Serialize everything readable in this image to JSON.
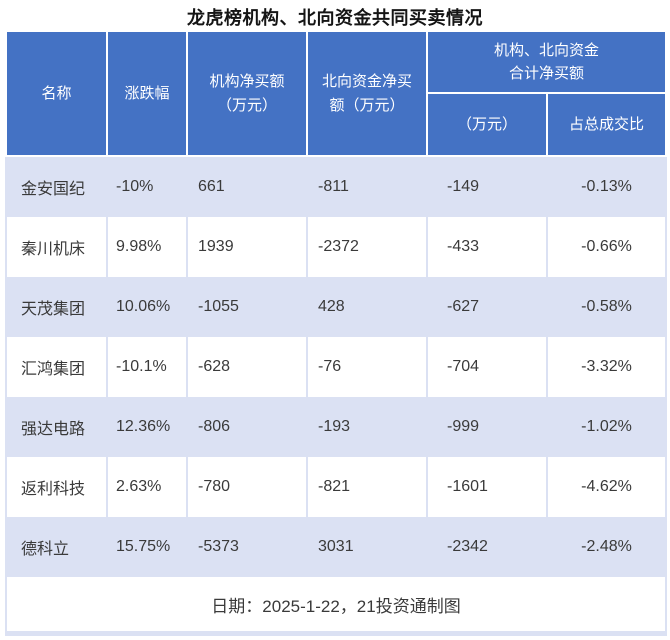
{
  "title": "龙虎榜机构、北向资金共同买卖情况",
  "colors": {
    "header_bg": "#4472c4",
    "header_text": "#ffffff",
    "row_alt_bg": "#dbe1f3",
    "row_bg": "#ffffff",
    "frame_border": "#dbe1f3",
    "body_text": "#3a3a3a",
    "title_text": "#151515"
  },
  "table": {
    "headers": {
      "name": "名称",
      "change": "涨跌幅",
      "inst_net_buy": "机构净买额\n（万元）",
      "north_net_buy": "北向资金净买\n额（万元）",
      "combined_group": "机构、北向资金\n合计净买额",
      "combined_amount": "（万元）",
      "combined_ratio": "占总成交比"
    },
    "rows": [
      {
        "name": "金安国纪",
        "change": "-10%",
        "inst": "661",
        "north": "-811",
        "combined": "-149",
        "ratio": "-0.13%"
      },
      {
        "name": "秦川机床",
        "change": "9.98%",
        "inst": "1939",
        "north": "-2372",
        "combined": "-433",
        "ratio": "-0.66%"
      },
      {
        "name": "天茂集团",
        "change": "10.06%",
        "inst": "-1055",
        "north": "428",
        "combined": "-627",
        "ratio": "-0.58%"
      },
      {
        "name": "汇鸿集团",
        "change": "-10.1%",
        "inst": "-628",
        "north": "-76",
        "combined": "-704",
        "ratio": "-3.32%"
      },
      {
        "name": "强达电路",
        "change": "12.36%",
        "inst": "-806",
        "north": "-193",
        "combined": "-999",
        "ratio": "-1.02%"
      },
      {
        "name": "返利科技",
        "change": "2.63%",
        "inst": "-780",
        "north": "-821",
        "combined": "-1601",
        "ratio": "-4.62%"
      },
      {
        "name": "德科立",
        "change": "15.75%",
        "inst": "-5373",
        "north": "3031",
        "combined": "-2342",
        "ratio": "-2.48%"
      }
    ]
  },
  "footer": {
    "note": "日期：2025-1-22，21投资通制图"
  },
  "chart_data": {
    "type": "table",
    "title": "龙虎榜机构、北向资金共同买卖情况",
    "columns": [
      "名称",
      "涨跌幅",
      "机构净买额（万元）",
      "北向资金净买额（万元）",
      "机构、北向资金合计净买额（万元）",
      "机构、北向资金合计净买额占总成交比"
    ],
    "rows": [
      [
        "金安国纪",
        "-10%",
        661,
        -811,
        -149,
        "-0.13%"
      ],
      [
        "秦川机床",
        "9.98%",
        1939,
        -2372,
        -433,
        "-0.66%"
      ],
      [
        "天茂集团",
        "10.06%",
        -1055,
        428,
        -627,
        "-0.58%"
      ],
      [
        "汇鸿集团",
        "-10.1%",
        -628,
        -76,
        -704,
        "-3.32%"
      ],
      [
        "强达电路",
        "12.36%",
        -806,
        -193,
        -999,
        "-1.02%"
      ],
      [
        "返利科技",
        "2.63%",
        -780,
        -821,
        -1601,
        "-4.62%"
      ],
      [
        "德科立",
        "15.75%",
        -5373,
        3031,
        -2342,
        "-2.48%"
      ]
    ],
    "footnote": "日期：2025-1-22，21投资通制图"
  }
}
